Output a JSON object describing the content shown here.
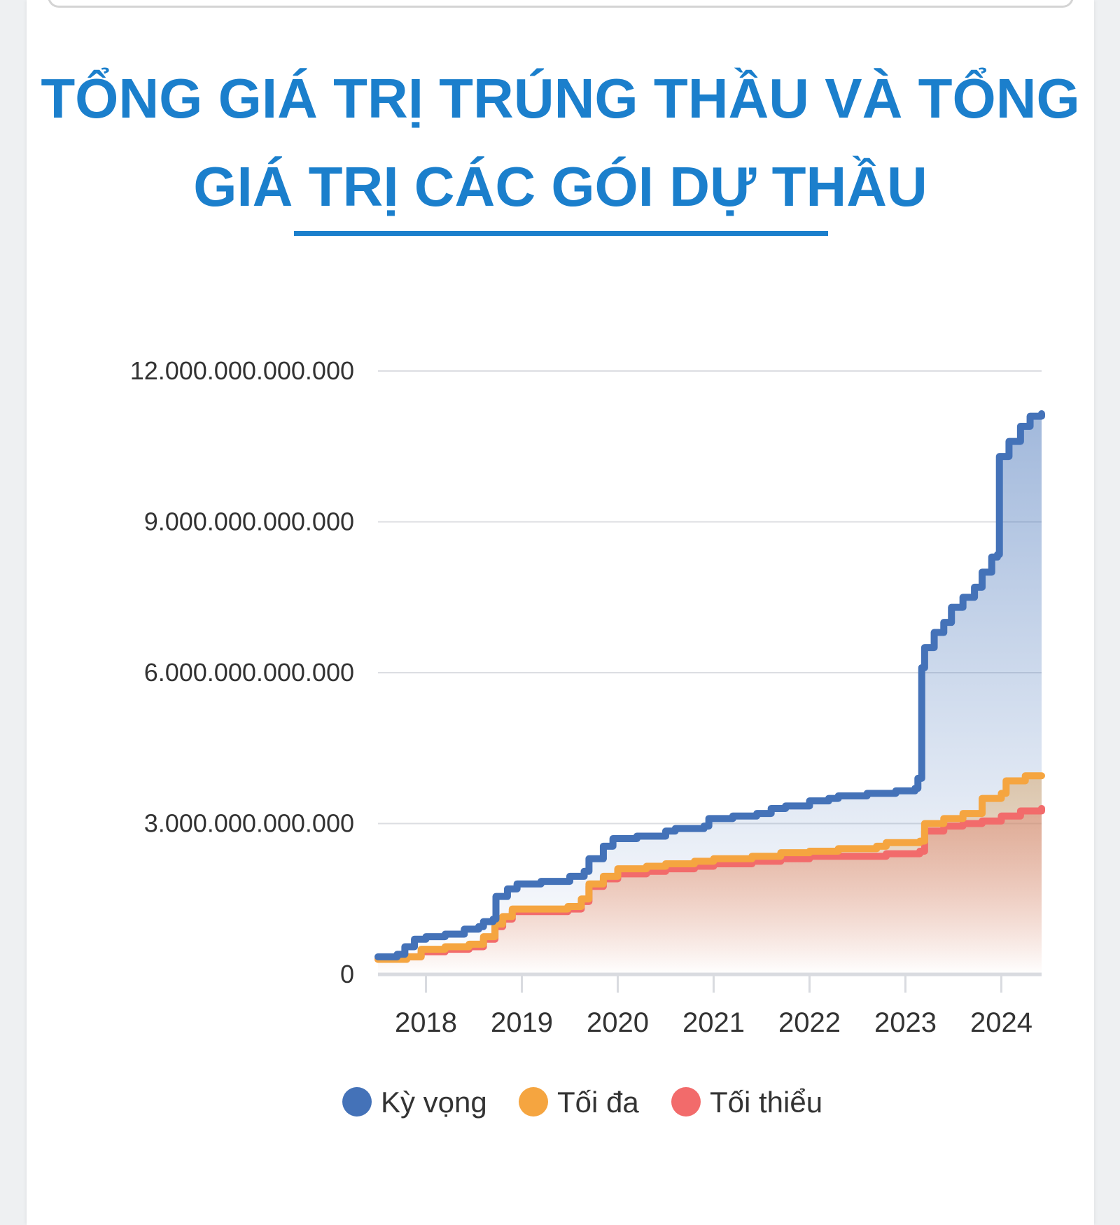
{
  "title": "TỔNG GIÁ TRỊ TRÚNG THẦU VÀ TỔNG GIÁ TRỊ CÁC GÓI DỰ THẦU",
  "chart_data": {
    "type": "area",
    "title": "TỔNG GIÁ TRỊ TRÚNG THẦU VÀ TỔNG GIÁ TRỊ CÁC GÓI DỰ THẦU",
    "xlabel": "",
    "ylabel": "",
    "x_ticks": [
      "2018",
      "2019",
      "2020",
      "2021",
      "2022",
      "2023",
      "2024"
    ],
    "y_ticks": [
      "0",
      "3.000.000.000.000",
      "6.000.000.000.000",
      "9.000.000.000.000",
      "12.000.000.000.000"
    ],
    "ylim": [
      0,
      12000000000000
    ],
    "xlim": [
      2017.5,
      2024.42
    ],
    "grid": true,
    "legend_position": "bottom",
    "series": [
      {
        "name": "Kỳ vọng",
        "color": "#4472b8",
        "points": [
          [
            2017.5,
            350000000000.0
          ],
          [
            2017.7,
            400000000000.0
          ],
          [
            2017.78,
            550000000000.0
          ],
          [
            2017.88,
            700000000000.0
          ],
          [
            2018.0,
            750000000000.0
          ],
          [
            2018.2,
            800000000000.0
          ],
          [
            2018.4,
            900000000000.0
          ],
          [
            2018.55,
            950000000000.0
          ],
          [
            2018.6,
            1050000000000.0
          ],
          [
            2018.7,
            1100000000000.0
          ],
          [
            2018.73,
            1550000000000.0
          ],
          [
            2018.85,
            1700000000000.0
          ],
          [
            2018.95,
            1800000000000.0
          ],
          [
            2019.2,
            1850000000000.0
          ],
          [
            2019.45,
            1850000000000.0
          ],
          [
            2019.5,
            1950000000000.0
          ],
          [
            2019.65,
            2050000000000.0
          ],
          [
            2019.7,
            2300000000000.0
          ],
          [
            2019.85,
            2550000000000.0
          ],
          [
            2019.95,
            2700000000000.0
          ],
          [
            2020.2,
            2750000000000.0
          ],
          [
            2020.5,
            2850000000000.0
          ],
          [
            2020.6,
            2900000000000.0
          ],
          [
            2020.9,
            2950000000000.0
          ],
          [
            2020.95,
            3100000000000.0
          ],
          [
            2021.2,
            3150000000000.0
          ],
          [
            2021.45,
            3200000000000.0
          ],
          [
            2021.6,
            3300000000000.0
          ],
          [
            2021.75,
            3350000000000.0
          ],
          [
            2022.0,
            3450000000000.0
          ],
          [
            2022.2,
            3500000000000.0
          ],
          [
            2022.3,
            3550000000000.0
          ],
          [
            2022.6,
            3600000000000.0
          ],
          [
            2022.9,
            3650000000000.0
          ],
          [
            2023.1,
            3700000000000.0
          ],
          [
            2023.13,
            3900000000000.0
          ],
          [
            2023.17,
            6100000000000.0
          ],
          [
            2023.2,
            6500000000000.0
          ],
          [
            2023.3,
            6800000000000.0
          ],
          [
            2023.4,
            7000000000000.0
          ],
          [
            2023.48,
            7300000000000.0
          ],
          [
            2023.6,
            7500000000000.0
          ],
          [
            2023.72,
            7700000000000.0
          ],
          [
            2023.8,
            8000000000000.0
          ],
          [
            2023.9,
            8300000000000.0
          ],
          [
            2023.96,
            8350000000000.0
          ],
          [
            2023.98,
            10300000000000.0
          ],
          [
            2024.08,
            10600000000000.0
          ],
          [
            2024.2,
            10900000000000.0
          ],
          [
            2024.3,
            11100000000000.0
          ],
          [
            2024.42,
            11150000000000.0
          ]
        ]
      },
      {
        "name": "Tối đa",
        "color": "#f5a540",
        "points": [
          [
            2017.5,
            300000000000.0
          ],
          [
            2017.8,
            350000000000.0
          ],
          [
            2017.95,
            500000000000.0
          ],
          [
            2018.2,
            550000000000.0
          ],
          [
            2018.45,
            600000000000.0
          ],
          [
            2018.6,
            750000000000.0
          ],
          [
            2018.72,
            1000000000000.0
          ],
          [
            2018.8,
            1150000000000.0
          ],
          [
            2018.9,
            1300000000000.0
          ],
          [
            2019.2,
            1300000000000.0
          ],
          [
            2019.48,
            1350000000000.0
          ],
          [
            2019.62,
            1500000000000.0
          ],
          [
            2019.7,
            1800000000000.0
          ],
          [
            2019.85,
            1950000000000.0
          ],
          [
            2020.0,
            2100000000000.0
          ],
          [
            2020.3,
            2150000000000.0
          ],
          [
            2020.5,
            2200000000000.0
          ],
          [
            2020.8,
            2250000000000.0
          ],
          [
            2021.0,
            2300000000000.0
          ],
          [
            2021.4,
            2350000000000.0
          ],
          [
            2021.7,
            2420000000000.0
          ],
          [
            2022.0,
            2450000000000.0
          ],
          [
            2022.3,
            2500000000000.0
          ],
          [
            2022.7,
            2550000000000.0
          ],
          [
            2022.8,
            2620000000000.0
          ],
          [
            2023.15,
            2650000000000.0
          ],
          [
            2023.2,
            3000000000000.0
          ],
          [
            2023.4,
            3100000000000.0
          ],
          [
            2023.6,
            3200000000000.0
          ],
          [
            2023.75,
            3200000000000.0
          ],
          [
            2023.8,
            3500000000000.0
          ],
          [
            2024.0,
            3600000000000.0
          ],
          [
            2024.05,
            3850000000000.0
          ],
          [
            2024.25,
            3950000000000.0
          ],
          [
            2024.42,
            3950000000000.0
          ]
        ]
      },
      {
        "name": "Tối thiểu",
        "color": "#f26b6b",
        "points": [
          [
            2017.5,
            300000000000.0
          ],
          [
            2017.8,
            350000000000.0
          ],
          [
            2017.95,
            450000000000.0
          ],
          [
            2018.2,
            500000000000.0
          ],
          [
            2018.45,
            550000000000.0
          ],
          [
            2018.6,
            700000000000.0
          ],
          [
            2018.72,
            950000000000.0
          ],
          [
            2018.8,
            1100000000000.0
          ],
          [
            2018.9,
            1250000000000.0
          ],
          [
            2019.2,
            1250000000000.0
          ],
          [
            2019.48,
            1300000000000.0
          ],
          [
            2019.62,
            1450000000000.0
          ],
          [
            2019.7,
            1750000000000.0
          ],
          [
            2019.85,
            1900000000000.0
          ],
          [
            2020.0,
            2000000000000.0
          ],
          [
            2020.3,
            2050000000000.0
          ],
          [
            2020.5,
            2100000000000.0
          ],
          [
            2020.8,
            2150000000000.0
          ],
          [
            2021.0,
            2200000000000.0
          ],
          [
            2021.4,
            2250000000000.0
          ],
          [
            2021.7,
            2300000000000.0
          ],
          [
            2022.0,
            2350000000000.0
          ],
          [
            2022.5,
            2350000000000.0
          ],
          [
            2022.8,
            2400000000000.0
          ],
          [
            2023.15,
            2450000000000.0
          ],
          [
            2023.2,
            2850000000000.0
          ],
          [
            2023.4,
            2950000000000.0
          ],
          [
            2023.6,
            3000000000000.0
          ],
          [
            2023.8,
            3050000000000.0
          ],
          [
            2024.0,
            3150000000000.0
          ],
          [
            2024.2,
            3250000000000.0
          ],
          [
            2024.42,
            3300000000000.0
          ]
        ]
      }
    ]
  }
}
